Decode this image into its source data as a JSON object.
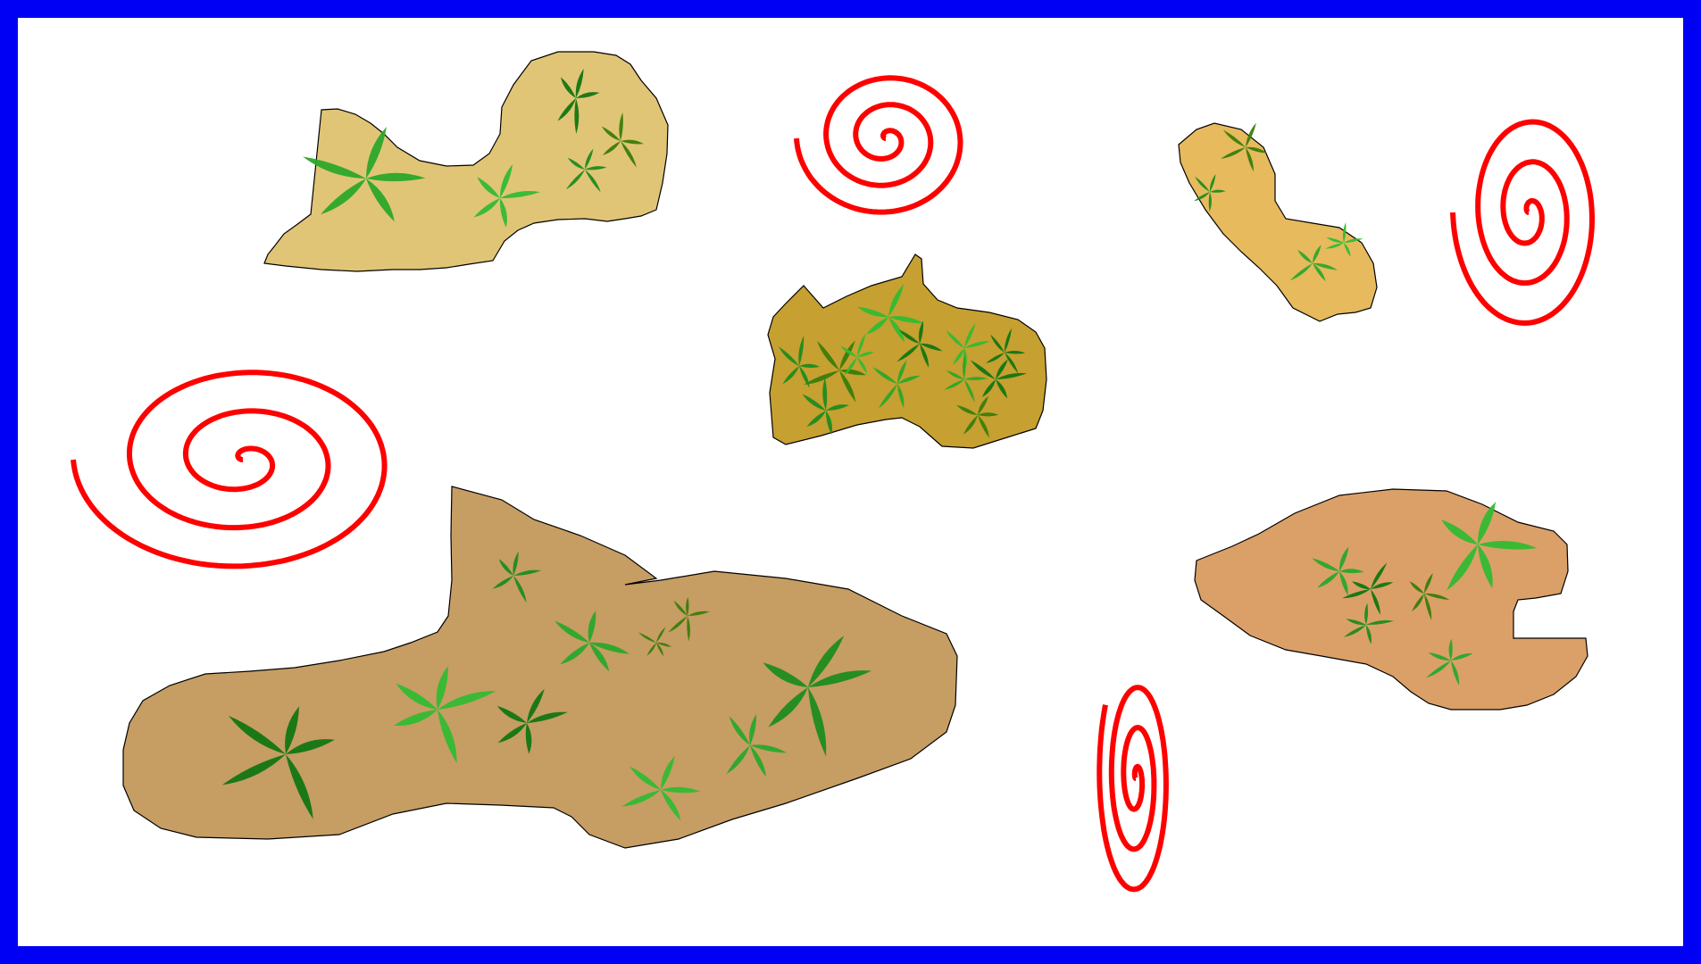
{
  "scene": {
    "background": "#ffffff",
    "border_color": "#0000f5",
    "spiral_color": "#ff0000",
    "islands": [
      {
        "id": "island-1",
        "color": "#e1c576",
        "palms": 6
      },
      {
        "id": "island-2",
        "color": "#c6a030",
        "palms": 12
      },
      {
        "id": "island-3",
        "color": "#e6ba5d",
        "palms": 4
      },
      {
        "id": "island-4",
        "color": "#c69d63",
        "palms": 10
      },
      {
        "id": "island-5",
        "color": "#daa068",
        "palms": 6
      }
    ],
    "spirals": [
      {
        "id": "spiral-1"
      },
      {
        "id": "spiral-2"
      },
      {
        "id": "spiral-3"
      },
      {
        "id": "spiral-4"
      }
    ],
    "plant_colors": [
      "#1e8c1e",
      "#2aa82a",
      "#33bb33",
      "#127612",
      "#3a7d0a"
    ]
  }
}
